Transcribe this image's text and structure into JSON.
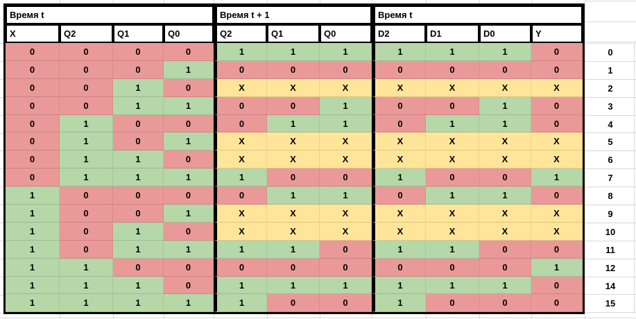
{
  "table": {
    "sections": [
      {
        "title": "Время t",
        "columns": [
          "X",
          "Q2",
          "Q1",
          "Q0"
        ]
      },
      {
        "title": "Время t + 1",
        "columns": [
          "Q2",
          "Q1",
          "Q0"
        ]
      },
      {
        "title": "Время t",
        "columns": [
          "D2",
          "D1",
          "D0",
          "Y"
        ]
      }
    ],
    "value_colors": {
      "0": "#EA9999",
      "1": "#B6D7A8",
      "X": "#FFE599"
    },
    "rows": [
      {
        "label": "0",
        "values": [
          "0",
          "0",
          "0",
          "0",
          "1",
          "1",
          "1",
          "1",
          "1",
          "1",
          "0"
        ]
      },
      {
        "label": "1",
        "values": [
          "0",
          "0",
          "0",
          "1",
          "0",
          "0",
          "0",
          "0",
          "0",
          "0",
          "0"
        ]
      },
      {
        "label": "2",
        "values": [
          "0",
          "0",
          "1",
          "0",
          "X",
          "X",
          "X",
          "X",
          "X",
          "X",
          "X"
        ]
      },
      {
        "label": "3",
        "values": [
          "0",
          "0",
          "1",
          "1",
          "0",
          "0",
          "1",
          "0",
          "0",
          "1",
          "0"
        ]
      },
      {
        "label": "4",
        "values": [
          "0",
          "1",
          "0",
          "0",
          "0",
          "1",
          "1",
          "0",
          "1",
          "1",
          "0"
        ]
      },
      {
        "label": "5",
        "values": [
          "0",
          "1",
          "0",
          "1",
          "X",
          "X",
          "X",
          "X",
          "X",
          "X",
          "X"
        ]
      },
      {
        "label": "6",
        "values": [
          "0",
          "1",
          "1",
          "0",
          "X",
          "X",
          "X",
          "X",
          "X",
          "X",
          "X"
        ]
      },
      {
        "label": "7",
        "values": [
          "0",
          "1",
          "1",
          "1",
          "1",
          "0",
          "0",
          "1",
          "0",
          "0",
          "1"
        ]
      },
      {
        "label": "8",
        "values": [
          "1",
          "0",
          "0",
          "0",
          "0",
          "1",
          "1",
          "0",
          "1",
          "1",
          "0"
        ]
      },
      {
        "label": "9",
        "values": [
          "1",
          "0",
          "0",
          "1",
          "X",
          "X",
          "X",
          "X",
          "X",
          "X",
          "X"
        ]
      },
      {
        "label": "10",
        "values": [
          "1",
          "0",
          "1",
          "0",
          "X",
          "X",
          "X",
          "X",
          "X",
          "X",
          "X"
        ]
      },
      {
        "label": "11",
        "values": [
          "1",
          "0",
          "1",
          "1",
          "1",
          "1",
          "0",
          "1",
          "1",
          "0",
          "0"
        ]
      },
      {
        "label": "12",
        "values": [
          "1",
          "1",
          "0",
          "0",
          "0",
          "0",
          "0",
          "0",
          "0",
          "0",
          "1"
        ]
      },
      {
        "label": "14",
        "values": [
          "1",
          "1",
          "1",
          "0",
          "1",
          "1",
          "1",
          "1",
          "1",
          "1",
          "0"
        ]
      },
      {
        "label": "15",
        "values": [
          "1",
          "1",
          "1",
          "1",
          "1",
          "0",
          "0",
          "1",
          "0",
          "0",
          "0"
        ]
      }
    ]
  }
}
